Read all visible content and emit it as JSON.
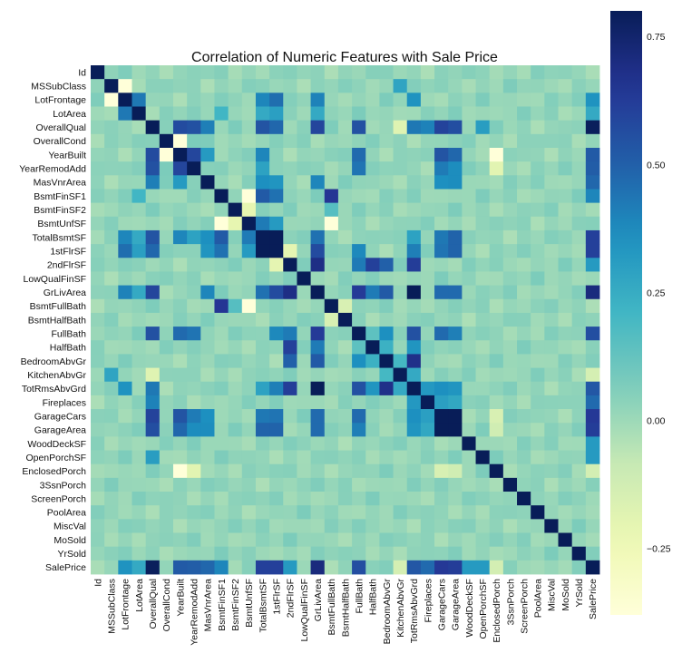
{
  "chart_data": {
    "type": "heatmap",
    "title": "Correlation of Numeric Features with Sale Price",
    "labels": [
      "Id",
      "MSSubClass",
      "LotFrontage",
      "LotArea",
      "OverallQual",
      "OverallCond",
      "YearBuilt",
      "YearRemodAdd",
      "MasVnrArea",
      "BsmtFinSF1",
      "BsmtFinSF2",
      "BsmtUnfSF",
      "TotalBsmtSF",
      "1stFlrSF",
      "2ndFlrSF",
      "LowQualFinSF",
      "GrLivArea",
      "BsmtFullBath",
      "BsmtHalfBath",
      "FullBath",
      "HalfBath",
      "BedroomAbvGr",
      "KitchenAbvGr",
      "TotRmsAbvGrd",
      "Fireplaces",
      "GarageCars",
      "GarageArea",
      "WoodDeckSF",
      "OpenPorchSF",
      "EnclosedPorch",
      "3SsnPorch",
      "ScreenPorch",
      "PoolArea",
      "MiscVal",
      "MoSold",
      "YrSold",
      "SalePrice"
    ],
    "color_range": [
      -0.38,
      0.8
    ],
    "colormap": "YlGnBu",
    "colorbar_ticks": [
      0.75,
      0.5,
      0.25,
      0.0,
      -0.25
    ],
    "colorbar_tick_labels": [
      "0.75",
      "0.50",
      "0.25",
      "0.00",
      "−0.25"
    ],
    "strong_pairs": [
      [
        "MSSubClass",
        "LotFrontage",
        -0.39
      ],
      [
        "MSSubClass",
        "KitchenAbvGr",
        0.28
      ],
      [
        "LotFrontage",
        "LotArea",
        0.43
      ],
      [
        "LotFrontage",
        "1stFlrSF",
        0.46
      ],
      [
        "LotFrontage",
        "TotalBsmtSF",
        0.39
      ],
      [
        "LotFrontage",
        "GrLivArea",
        0.4
      ],
      [
        "LotFrontage",
        "TotRmsAbvGrd",
        0.35
      ],
      [
        "LotFrontage",
        "SalePrice",
        0.35
      ],
      [
        "LotArea",
        "BsmtFinSF1",
        0.21
      ],
      [
        "LotArea",
        "TotalBsmtSF",
        0.26
      ],
      [
        "LotArea",
        "1stFlrSF",
        0.3
      ],
      [
        "LotArea",
        "GrLivArea",
        0.26
      ],
      [
        "LotArea",
        "SalePrice",
        0.26
      ],
      [
        "OverallQual",
        "YearBuilt",
        0.57
      ],
      [
        "OverallQual",
        "YearRemodAdd",
        0.55
      ],
      [
        "OverallQual",
        "MasVnrArea",
        0.41
      ],
      [
        "OverallQual",
        "TotalBsmtSF",
        0.54
      ],
      [
        "OverallQual",
        "1stFlrSF",
        0.48
      ],
      [
        "OverallQual",
        "GrLivArea",
        0.59
      ],
      [
        "OverallQual",
        "FullBath",
        0.55
      ],
      [
        "OverallQual",
        "TotRmsAbvGrd",
        0.43
      ],
      [
        "OverallQual",
        "Fireplaces",
        0.4
      ],
      [
        "OverallQual",
        "GarageCars",
        0.6
      ],
      [
        "OverallQual",
        "GarageArea",
        0.56
      ],
      [
        "OverallQual",
        "OpenPorchSF",
        0.31
      ],
      [
        "OverallQual",
        "SalePrice",
        0.79
      ],
      [
        "OverallQual",
        "KitchenAbvGr",
        -0.18
      ],
      [
        "OverallCond",
        "YearBuilt",
        -0.38
      ],
      [
        "OverallCond",
        "YearRemodAdd",
        0.07
      ],
      [
        "YearBuilt",
        "YearRemodAdd",
        0.59
      ],
      [
        "YearBuilt",
        "MasVnrArea",
        0.32
      ],
      [
        "YearBuilt",
        "TotalBsmtSF",
        0.39
      ],
      [
        "YearBuilt",
        "FullBath",
        0.47
      ],
      [
        "YearBuilt",
        "GarageCars",
        0.54
      ],
      [
        "YearBuilt",
        "GarageArea",
        0.48
      ],
      [
        "YearBuilt",
        "EnclosedPorch",
        -0.39
      ],
      [
        "YearBuilt",
        "SalePrice",
        0.52
      ],
      [
        "YearRemodAdd",
        "TotalBsmtSF",
        0.29
      ],
      [
        "YearRemodAdd",
        "FullBath",
        0.44
      ],
      [
        "YearRemodAdd",
        "GarageCars",
        0.42
      ],
      [
        "YearRemodAdd",
        "GarageArea",
        0.37
      ],
      [
        "YearRemodAdd",
        "SalePrice",
        0.51
      ],
      [
        "YearRemodAdd",
        "EnclosedPorch",
        -0.19
      ],
      [
        "MasVnrArea",
        "TotalBsmtSF",
        0.36
      ],
      [
        "MasVnrArea",
        "1stFlrSF",
        0.34
      ],
      [
        "MasVnrArea",
        "GrLivArea",
        0.39
      ],
      [
        "MasVnrArea",
        "GarageCars",
        0.36
      ],
      [
        "MasVnrArea",
        "GarageArea",
        0.37
      ],
      [
        "MasVnrArea",
        "SalePrice",
        0.48
      ],
      [
        "BsmtFinSF1",
        "BsmtUnfSF",
        -0.5
      ],
      [
        "BsmtFinSF1",
        "TotalBsmtSF",
        0.52
      ],
      [
        "BsmtFinSF1",
        "1stFlrSF",
        0.45
      ],
      [
        "BsmtFinSF1",
        "BsmtFullBath",
        0.65
      ],
      [
        "BsmtFinSF1",
        "SalePrice",
        0.39
      ],
      [
        "BsmtFinSF2",
        "BsmtUnfSF",
        -0.21
      ],
      [
        "BsmtFinSF2",
        "BsmtFullBath",
        0.16
      ],
      [
        "BsmtUnfSF",
        "TotalBsmtSF",
        0.42
      ],
      [
        "BsmtUnfSF",
        "1stFlrSF",
        0.32
      ],
      [
        "BsmtUnfSF",
        "BsmtFullBath",
        -0.42
      ],
      [
        "TotalBsmtSF",
        "1stFlrSF",
        0.82
      ],
      [
        "TotalBsmtSF",
        "GrLivArea",
        0.45
      ],
      [
        "TotalBsmtSF",
        "TotRmsAbvGrd",
        0.29
      ],
      [
        "TotalBsmtSF",
        "GarageCars",
        0.43
      ],
      [
        "TotalBsmtSF",
        "GarageArea",
        0.49
      ],
      [
        "TotalBsmtSF",
        "SalePrice",
        0.61
      ],
      [
        "1stFlrSF",
        "2ndFlrSF",
        -0.2
      ],
      [
        "1stFlrSF",
        "GrLivArea",
        0.57
      ],
      [
        "1stFlrSF",
        "FullBath",
        0.38
      ],
      [
        "1stFlrSF",
        "TotRmsAbvGrd",
        0.41
      ],
      [
        "1stFlrSF",
        "GarageCars",
        0.44
      ],
      [
        "1stFlrSF",
        "GarageArea",
        0.49
      ],
      [
        "1stFlrSF",
        "SalePrice",
        0.61
      ],
      [
        "2ndFlrSF",
        "GrLivArea",
        0.69
      ],
      [
        "2ndFlrSF",
        "HalfBath",
        0.61
      ],
      [
        "2ndFlrSF",
        "BedroomAbvGr",
        0.5
      ],
      [
        "2ndFlrSF",
        "TotRmsAbvGrd",
        0.62
      ],
      [
        "2ndFlrSF",
        "FullBath",
        0.42
      ],
      [
        "2ndFlrSF",
        "SalePrice",
        0.32
      ],
      [
        "GrLivArea",
        "FullBath",
        0.63
      ],
      [
        "GrLivArea",
        "HalfBath",
        0.42
      ],
      [
        "GrLivArea",
        "BedroomAbvGr",
        0.52
      ],
      [
        "GrLivArea",
        "TotRmsAbvGrd",
        0.83
      ],
      [
        "GrLivArea",
        "GarageCars",
        0.47
      ],
      [
        "GrLivArea",
        "GarageArea",
        0.47
      ],
      [
        "GrLivArea",
        "SalePrice",
        0.71
      ],
      [
        "BsmtFullBath",
        "BsmtHalfBath",
        -0.15
      ],
      [
        "FullBath",
        "HalfBath",
        0.14
      ],
      [
        "FullBath",
        "BedroomAbvGr",
        0.36
      ],
      [
        "FullBath",
        "TotRmsAbvGrd",
        0.55
      ],
      [
        "FullBath",
        "GarageCars",
        0.47
      ],
      [
        "FullBath",
        "GarageArea",
        0.41
      ],
      [
        "FullBath",
        "SalePrice",
        0.56
      ],
      [
        "HalfBath",
        "BedroomAbvGr",
        0.23
      ],
      [
        "HalfBath",
        "TotRmsAbvGrd",
        0.34
      ],
      [
        "BedroomAbvGr",
        "KitchenAbvGr",
        0.2
      ],
      [
        "BedroomAbvGr",
        "TotRmsAbvGrd",
        0.68
      ],
      [
        "KitchenAbvGr",
        "TotRmsAbvGrd",
        0.26
      ],
      [
        "KitchenAbvGr",
        "SalePrice",
        -0.14
      ],
      [
        "TotRmsAbvGrd",
        "Fireplaces",
        0.33
      ],
      [
        "TotRmsAbvGrd",
        "GarageCars",
        0.36
      ],
      [
        "TotRmsAbvGrd",
        "GarageArea",
        0.34
      ],
      [
        "TotRmsAbvGrd",
        "SalePrice",
        0.53
      ],
      [
        "Fireplaces",
        "GarageCars",
        0.3
      ],
      [
        "Fireplaces",
        "GarageArea",
        0.27
      ],
      [
        "Fireplaces",
        "SalePrice",
        0.47
      ],
      [
        "GarageCars",
        "GarageArea",
        0.88
      ],
      [
        "GarageCars",
        "SalePrice",
        0.64
      ],
      [
        "GarageArea",
        "SalePrice",
        0.62
      ],
      [
        "WoodDeckSF",
        "SalePrice",
        0.32
      ],
      [
        "OpenPorchSF",
        "SalePrice",
        0.32
      ],
      [
        "EnclosedPorch",
        "SalePrice",
        -0.13
      ],
      [
        "EnclosedPorch",
        "GarageCars",
        -0.15
      ],
      [
        "EnclosedPorch",
        "GarageArea",
        -0.12
      ]
    ]
  }
}
